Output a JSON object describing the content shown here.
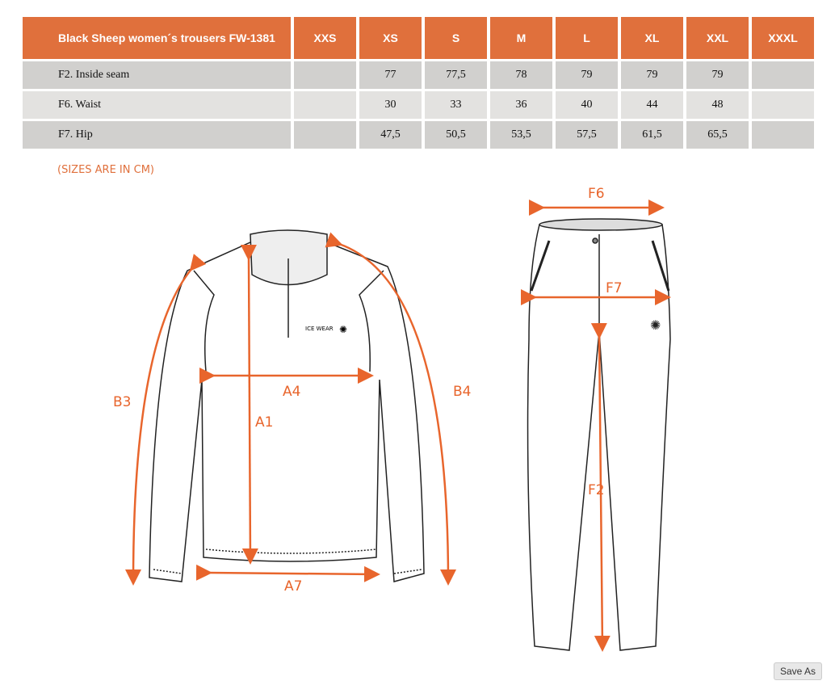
{
  "table": {
    "title": "Black Sheep women´s trousers FW-1381",
    "sizes": [
      "XXS",
      "XS",
      "S",
      "M",
      "L",
      "XL",
      "XXL",
      "XXXL"
    ],
    "rows": [
      {
        "label": "F2. Inside seam",
        "values": [
          "",
          "77",
          "77,5",
          "78",
          "79",
          "79",
          "79",
          ""
        ]
      },
      {
        "label": "F6. Waist",
        "values": [
          "",
          "30",
          "33",
          "36",
          "40",
          "44",
          "48",
          ""
        ]
      },
      {
        "label": "F7. Hip",
        "values": [
          "",
          "47,5",
          "50,5",
          "53,5",
          "57,5",
          "61,5",
          "65,5",
          ""
        ]
      }
    ]
  },
  "note": "(SIZES ARE IN CM)",
  "diagram": {
    "accent": "#e8652c",
    "logo": "ICE WEAR",
    "jacket_labels": {
      "a1": "A1",
      "a4": "A4",
      "a7": "A7",
      "b3": "B3",
      "b4": "B4"
    },
    "trouser_labels": {
      "f2": "F2",
      "f6": "F6",
      "f7": "F7"
    }
  },
  "save_as": "Save As"
}
